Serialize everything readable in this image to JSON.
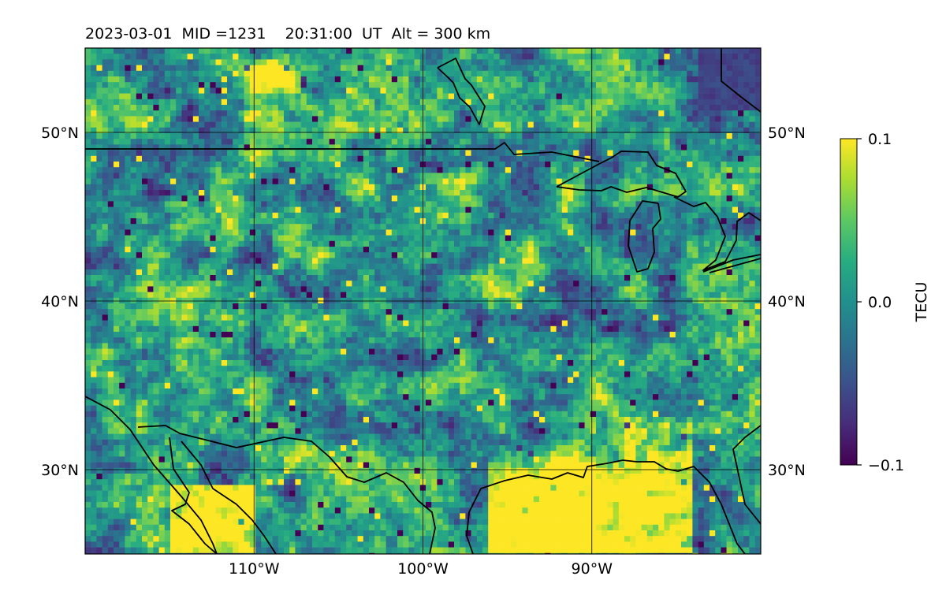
{
  "title": "2023-03-01  MID =1231    20:31:00  UT  Alt = 300 km",
  "map": {
    "lon_range": [
      -120,
      -80
    ],
    "lat_range": [
      25,
      55
    ],
    "grid": true,
    "lon_ticks": [
      {
        "value": -110,
        "label": "110°W"
      },
      {
        "value": -100,
        "label": "100°W"
      },
      {
        "value": -90,
        "label": "90°W"
      }
    ],
    "lat_ticks": [
      {
        "value": 30,
        "label": "30°N"
      },
      {
        "value": 40,
        "label": "40°N"
      },
      {
        "value": 50,
        "label": "50°N"
      }
    ],
    "coastline_color": "#000000"
  },
  "colorbar": {
    "label": "TECU",
    "min": -0.1,
    "max": 0.1,
    "colormap": "viridis",
    "ticks": [
      {
        "value": 0.1,
        "label": "0.1"
      },
      {
        "value": 0.0,
        "label": "0.0"
      },
      {
        "value": -0.1,
        "label": "−0.1"
      }
    ]
  },
  "chart_data": {
    "type": "heatmap",
    "title": "2023-03-01  MID =1231    20:31:00  UT  Alt = 300 km",
    "xlabel": "",
    "ylabel": "",
    "xlim": [
      -120,
      -80
    ],
    "ylim": [
      25,
      55
    ],
    "x_tick_labels": [
      "110°W",
      "100°W",
      "90°W"
    ],
    "y_tick_labels": [
      "30°N",
      "40°N",
      "50°N"
    ],
    "colorbar_label": "TECU",
    "value_range": [
      -0.1,
      0.1
    ],
    "colormap": "viridis",
    "features": [
      {
        "region": "Gulf Coast / Louisiana-Mississippi (lon -96 to -84, lat 25 to 32)",
        "value": 0.1
      },
      {
        "region": "NW Mexico / Sonora (lon -115 to -110, lat 25 to 29)",
        "value": 0.1
      },
      {
        "region": "Central Canada near (lon -109, lat 53.5)",
        "value": 0.08
      },
      {
        "region": "Hudson Bay corner (lon -82, lat 52)",
        "value": -0.08
      },
      {
        "region": "Great Plains background (lon -110 to -90, lat 32 to 48)",
        "value": 0.0
      }
    ]
  }
}
